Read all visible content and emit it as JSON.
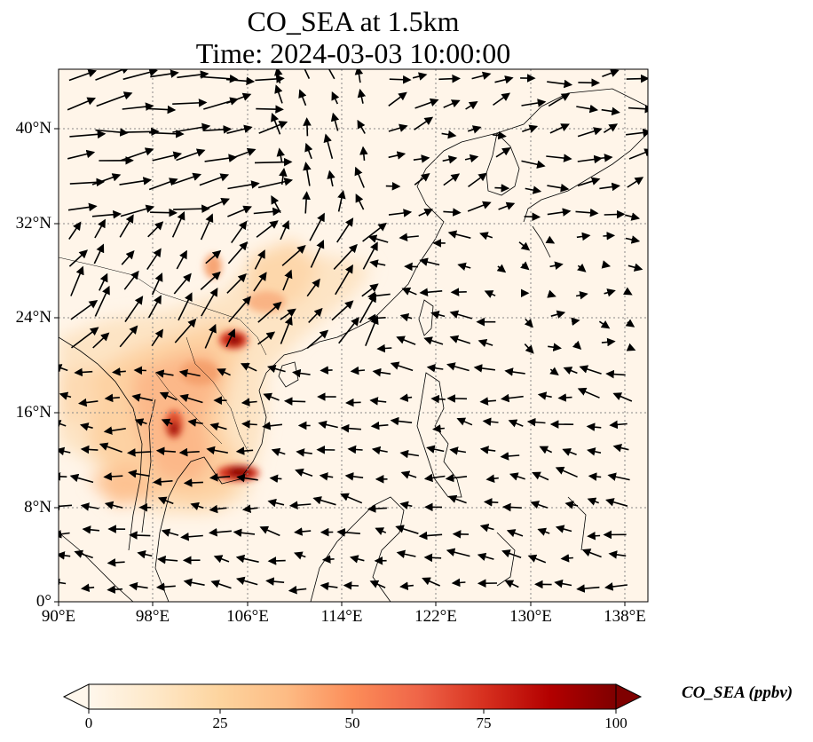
{
  "title_line1": "CO_SEA at 1.5km",
  "title_line2": "Time: 2024-03-03 10:00:00",
  "lat_ticks": [
    "40°N",
    "32°N",
    "24°N",
    "16°N",
    "8°N",
    "0°"
  ],
  "lon_ticks": [
    "90°E",
    "98°E",
    "106°E",
    "114°E",
    "122°E",
    "130°E",
    "138°E"
  ],
  "colorbar": {
    "label": "CO_SEA (ppbv)",
    "ticks": [
      "0",
      "25",
      "50",
      "75",
      "100"
    ],
    "colormap": [
      "#fff7ec",
      "#fee8c8",
      "#fdd49e",
      "#fdbb84",
      "#fc8d59",
      "#ef6548",
      "#d7301f",
      "#b30000",
      "#7f0000"
    ],
    "extend": "both"
  },
  "chart_data": {
    "type": "map",
    "variable": "CO_SEA",
    "level": "1.5km",
    "units": "ppbv",
    "lon_range": [
      90,
      140
    ],
    "lat_range": [
      0,
      45
    ],
    "vmin": 0,
    "vmax": 100,
    "hotspots": [
      {
        "lon": 104.9,
        "lat": 21.9,
        "value": 100
      },
      {
        "lon": 99.8,
        "lat": 14.8,
        "value": 90
      },
      {
        "lon": 105.6,
        "lat": 10.8,
        "value": 100
      },
      {
        "lon": 104.0,
        "lat": 18.0,
        "value": 40
      },
      {
        "lon": 108.5,
        "lat": 27.0,
        "value": 35
      }
    ],
    "wind_vectors": "black quiver arrows, generally westerly over the north, north-easterly/easterly over the South China Sea and tropics"
  }
}
